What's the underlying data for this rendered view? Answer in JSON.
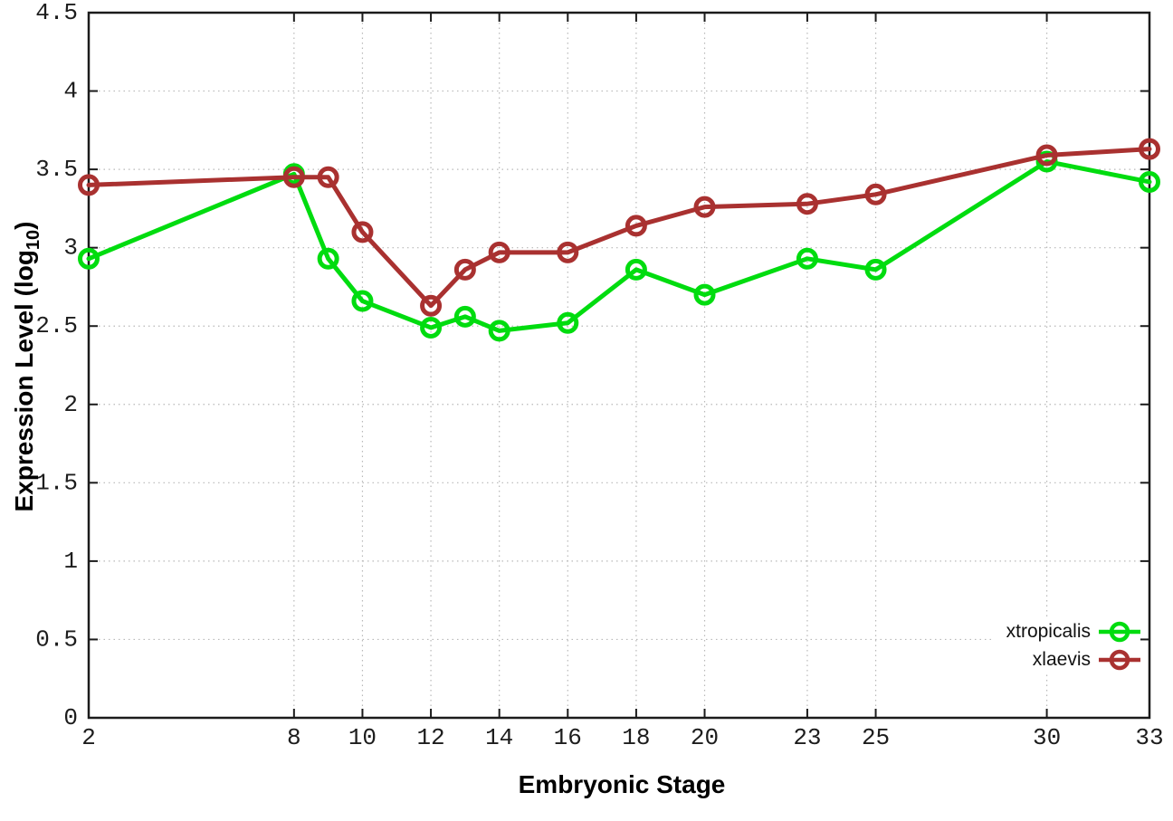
{
  "axes": {
    "x_title": "Embryonic Stage",
    "y_title_main": "Expression Level (log",
    "y_title_sub": "10",
    "y_title_suffix": ")"
  },
  "legend": {
    "items": [
      {
        "label": "xtropicalis"
      },
      {
        "label": "xlaevis"
      }
    ]
  },
  "colors": {
    "background": "#ffffff",
    "grid": "#b8b8b8",
    "axis": "#1b1b1b",
    "tick_label": "#1d1d1d",
    "xtropicalis": "#00dc0f",
    "xlaevis": "#a93130"
  },
  "chart_data": {
    "type": "line",
    "title": "",
    "xlabel": "Embryonic Stage",
    "ylabel": "Expression Level (log10)",
    "xlim": [
      2,
      33
    ],
    "ylim": [
      0,
      4.5
    ],
    "grid": true,
    "legend_position": "bottom-right",
    "marker": "open-circle",
    "x_ticks": [
      2,
      8,
      10,
      12,
      14,
      16,
      18,
      20,
      23,
      25,
      30,
      33
    ],
    "x_tick_labels": [
      "2",
      "8",
      "10",
      "12",
      "14",
      "16",
      "18",
      "20",
      "23",
      "25",
      "30",
      "33"
    ],
    "y_ticks": [
      0,
      0.5,
      1,
      1.5,
      2,
      2.5,
      3,
      3.5,
      4,
      4.5
    ],
    "y_tick_labels": [
      "0",
      "0.5",
      "1",
      "1.5",
      "2",
      "2.5",
      "3",
      "3.5",
      "4",
      "4.5"
    ],
    "x": [
      2,
      8,
      9,
      10,
      12,
      13,
      14,
      16,
      18,
      20,
      23,
      25,
      30,
      33
    ],
    "series": [
      {
        "name": "xtropicalis",
        "color": "#00dc0f",
        "values": [
          2.93,
          3.47,
          2.93,
          2.66,
          2.49,
          2.56,
          2.47,
          2.52,
          2.86,
          2.7,
          2.93,
          2.86,
          3.55,
          3.42
        ]
      },
      {
        "name": "xlaevis",
        "color": "#a93130",
        "values": [
          3.4,
          3.45,
          3.45,
          3.1,
          2.63,
          2.86,
          2.97,
          2.97,
          3.14,
          3.26,
          3.28,
          3.34,
          3.59,
          3.63
        ]
      }
    ]
  }
}
